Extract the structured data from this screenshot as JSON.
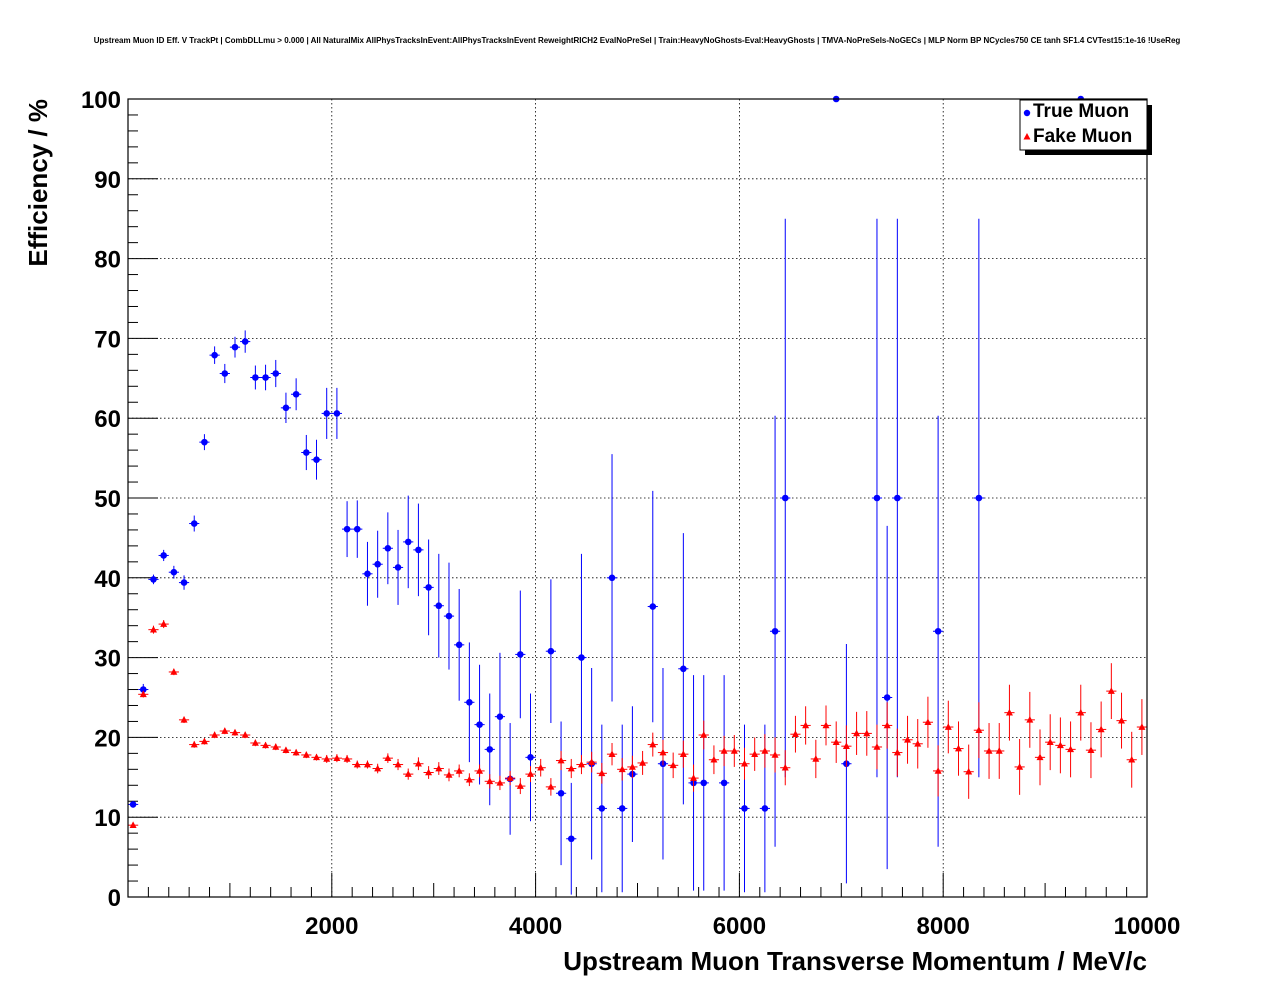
{
  "chart_data": {
    "type": "scatter",
    "title": "Upstream Muon ID Eff. V TrackPt | CombDLLmu > 0.000 | All NaturalMix AllPhysTracksInEvent:AllPhysTracksInEvent ReweightRICH2 EvalNoPreSel | Train:HeavyNoGhosts-Eval:HeavyGhosts | TMVA-NoPreSels-NoGECs | MLP Norm BP NCycles750 CE tanh SF1.4 CVTest15:1e-16 !UseReg",
    "xlabel": "Upstream Muon Transverse Momentum / MeV/c",
    "ylabel": "Efficiency / %",
    "xlim": [
      0,
      10000
    ],
    "ylim": [
      0,
      100
    ],
    "x_ticks": [
      2000,
      4000,
      6000,
      8000,
      10000
    ],
    "y_ticks": [
      0,
      10,
      20,
      30,
      40,
      50,
      60,
      70,
      80,
      90,
      100
    ],
    "grid": true,
    "legend_position": "top-right",
    "series": [
      {
        "name": "True Muon",
        "color": "#0000ff",
        "marker": "circle",
        "points": [
          [
            50,
            11.6,
            0.4
          ],
          [
            150,
            26,
            0.7
          ],
          [
            250,
            39.8,
            0.6
          ],
          [
            350,
            42.8,
            0.7
          ],
          [
            450,
            40.7,
            0.8
          ],
          [
            550,
            39.4,
            0.9
          ],
          [
            650,
            46.8,
            1.0
          ],
          [
            750,
            57,
            1.0
          ],
          [
            850,
            67.9,
            1.1
          ],
          [
            950,
            65.6,
            1.2
          ],
          [
            1050,
            68.9,
            1.3
          ],
          [
            1150,
            69.6,
            1.4
          ],
          [
            1250,
            65.1,
            1.5
          ],
          [
            1350,
            65.1,
            1.6
          ],
          [
            1450,
            65.6,
            1.7
          ],
          [
            1550,
            61.3,
            1.9
          ],
          [
            1650,
            63.0,
            2.0
          ],
          [
            1750,
            55.7,
            2.2
          ],
          [
            1850,
            54.8,
            2.5
          ],
          [
            1950,
            60.6,
            3.2
          ],
          [
            2050,
            60.6,
            3.2
          ],
          [
            2150,
            46.1,
            3.5
          ],
          [
            2250,
            46.1,
            3.6
          ],
          [
            2350,
            40.5,
            4.0
          ],
          [
            2450,
            41.7,
            4.2
          ],
          [
            2550,
            43.7,
            4.5
          ],
          [
            2650,
            41.3,
            4.7
          ],
          [
            2750,
            44.5,
            5.8
          ],
          [
            2850,
            43.5,
            5.8
          ],
          [
            2950,
            38.8,
            6.0
          ],
          [
            3050,
            36.5,
            6.5
          ],
          [
            3150,
            35.2,
            6.7
          ],
          [
            3250,
            31.6,
            7.0
          ],
          [
            3350,
            24.4,
            7.5
          ],
          [
            3450,
            21.6,
            7.5
          ],
          [
            3550,
            18.5,
            7.0
          ],
          [
            3650,
            22.6,
            8.0
          ],
          [
            3750,
            14.8,
            7.0
          ],
          [
            3850,
            30.4,
            8.0
          ],
          [
            3950,
            17.5,
            8.0
          ],
          [
            4150,
            30.8,
            9.0
          ],
          [
            4250,
            13.0,
            9.0
          ],
          [
            4350,
            7.3,
            7.0
          ],
          [
            4450,
            30.0,
            13.0
          ],
          [
            4550,
            16.7,
            12.0
          ],
          [
            4650,
            11.1,
            10.5
          ],
          [
            4750,
            40.0,
            15.5
          ],
          [
            4850,
            11.1,
            10.5
          ],
          [
            4950,
            15.4,
            8.5
          ],
          [
            5150,
            36.4,
            14.5
          ],
          [
            5250,
            16.7,
            12.0
          ],
          [
            5450,
            28.6,
            17.0
          ],
          [
            5550,
            14.3,
            13.5
          ],
          [
            5650,
            14.3,
            13.5
          ],
          [
            5850,
            14.3,
            13.5
          ],
          [
            6050,
            11.1,
            10.5
          ],
          [
            6250,
            11.1,
            10.5
          ],
          [
            6350,
            33.3,
            27.0
          ],
          [
            6450,
            50.0,
            35.0
          ],
          [
            6950,
            100,
            0
          ],
          [
            7050,
            16.7,
            15.0
          ],
          [
            7350,
            50.0,
            35.0
          ],
          [
            7450,
            25.0,
            21.5
          ],
          [
            7550,
            50.0,
            35.0
          ],
          [
            7950,
            33.3,
            27.0
          ],
          [
            8350,
            50.0,
            35.0
          ],
          [
            9350,
            100,
            0
          ]
        ]
      },
      {
        "name": "Fake Muon",
        "color": "#ff0000",
        "marker": "triangle",
        "points": [
          [
            50,
            9.0,
            0.3
          ],
          [
            150,
            25.4,
            0.4
          ],
          [
            250,
            33.5,
            0.5
          ],
          [
            350,
            34.2,
            0.5
          ],
          [
            450,
            28.2,
            0.4
          ],
          [
            550,
            22.2,
            0.4
          ],
          [
            650,
            19.1,
            0.4
          ],
          [
            750,
            19.5,
            0.4
          ],
          [
            850,
            20.3,
            0.4
          ],
          [
            950,
            20.8,
            0.4
          ],
          [
            1050,
            20.6,
            0.4
          ],
          [
            1150,
            20.3,
            0.4
          ],
          [
            1250,
            19.3,
            0.4
          ],
          [
            1350,
            19.0,
            0.4
          ],
          [
            1450,
            18.8,
            0.4
          ],
          [
            1550,
            18.4,
            0.4
          ],
          [
            1650,
            18.1,
            0.4
          ],
          [
            1750,
            17.8,
            0.4
          ],
          [
            1850,
            17.5,
            0.4
          ],
          [
            1950,
            17.3,
            0.5
          ],
          [
            2050,
            17.4,
            0.5
          ],
          [
            2150,
            17.3,
            0.5
          ],
          [
            2250,
            16.6,
            0.5
          ],
          [
            2350,
            16.6,
            0.5
          ],
          [
            2450,
            16.1,
            0.6
          ],
          [
            2550,
            17.4,
            0.6
          ],
          [
            2650,
            16.6,
            0.7
          ],
          [
            2750,
            15.4,
            0.7
          ],
          [
            2850,
            16.7,
            0.8
          ],
          [
            2950,
            15.6,
            0.8
          ],
          [
            3050,
            16.1,
            0.8
          ],
          [
            3150,
            15.3,
            0.8
          ],
          [
            3250,
            15.8,
            0.8
          ],
          [
            3350,
            14.7,
            0.8
          ],
          [
            3450,
            15.8,
            0.8
          ],
          [
            3550,
            14.5,
            0.9
          ],
          [
            3650,
            14.3,
            0.9
          ],
          [
            3750,
            14.9,
            0.9
          ],
          [
            3850,
            13.9,
            1.0
          ],
          [
            3950,
            15.4,
            1.0
          ],
          [
            4050,
            16.2,
            1.1
          ],
          [
            4150,
            13.8,
            1.1
          ],
          [
            4250,
            17.1,
            1.2
          ],
          [
            4350,
            16.1,
            1.2
          ],
          [
            4450,
            16.6,
            1.2
          ],
          [
            4550,
            16.9,
            1.3
          ],
          [
            4650,
            15.5,
            1.3
          ],
          [
            4750,
            17.9,
            1.4
          ],
          [
            4850,
            16.0,
            1.4
          ],
          [
            4950,
            16.3,
            1.4
          ],
          [
            5050,
            16.8,
            1.5
          ],
          [
            5150,
            19.1,
            1.5
          ],
          [
            5250,
            18.1,
            1.6
          ],
          [
            5350,
            16.5,
            1.6
          ],
          [
            5450,
            17.9,
            1.7
          ],
          [
            5550,
            14.9,
            1.7
          ],
          [
            5650,
            20.3,
            1.8
          ],
          [
            5750,
            17.2,
            1.8
          ],
          [
            5850,
            18.3,
            1.9
          ],
          [
            5950,
            18.3,
            2.0
          ],
          [
            6050,
            16.7,
            2.0
          ],
          [
            6150,
            17.9,
            2.1
          ],
          [
            6250,
            18.3,
            2.1
          ],
          [
            6350,
            17.8,
            2.2
          ],
          [
            6450,
            16.2,
            2.2
          ],
          [
            6550,
            20.4,
            2.3
          ],
          [
            6650,
            21.5,
            2.4
          ],
          [
            6750,
            17.3,
            2.4
          ],
          [
            6850,
            21.5,
            2.5
          ],
          [
            6950,
            19.4,
            2.6
          ],
          [
            7050,
            18.9,
            2.6
          ],
          [
            7150,
            20.5,
            2.7
          ],
          [
            7250,
            20.5,
            2.8
          ],
          [
            7350,
            18.8,
            2.8
          ],
          [
            7450,
            21.5,
            2.9
          ],
          [
            7550,
            18.1,
            3.0
          ],
          [
            7650,
            19.7,
            3.0
          ],
          [
            7750,
            19.2,
            3.1
          ],
          [
            7850,
            21.9,
            3.2
          ],
          [
            7950,
            15.8,
            3.2
          ],
          [
            8050,
            21.3,
            3.3
          ],
          [
            8150,
            18.6,
            3.4
          ],
          [
            8250,
            15.7,
            3.4
          ],
          [
            8350,
            20.9,
            3.5
          ],
          [
            8450,
            18.3,
            3.5
          ],
          [
            8550,
            18.3,
            3.5
          ],
          [
            8650,
            23.1,
            3.5
          ],
          [
            8750,
            16.3,
            3.5
          ],
          [
            8850,
            22.2,
            3.5
          ],
          [
            8950,
            17.5,
            3.5
          ],
          [
            9050,
            19.4,
            3.5
          ],
          [
            9150,
            19.0,
            3.5
          ],
          [
            9250,
            18.5,
            3.5
          ],
          [
            9350,
            23.1,
            3.5
          ],
          [
            9450,
            18.4,
            3.5
          ],
          [
            9550,
            21.0,
            3.5
          ],
          [
            9650,
            25.8,
            3.5
          ],
          [
            9750,
            22.1,
            3.5
          ],
          [
            9850,
            17.2,
            3.5
          ],
          [
            9950,
            21.3,
            3.5
          ]
        ]
      }
    ]
  }
}
